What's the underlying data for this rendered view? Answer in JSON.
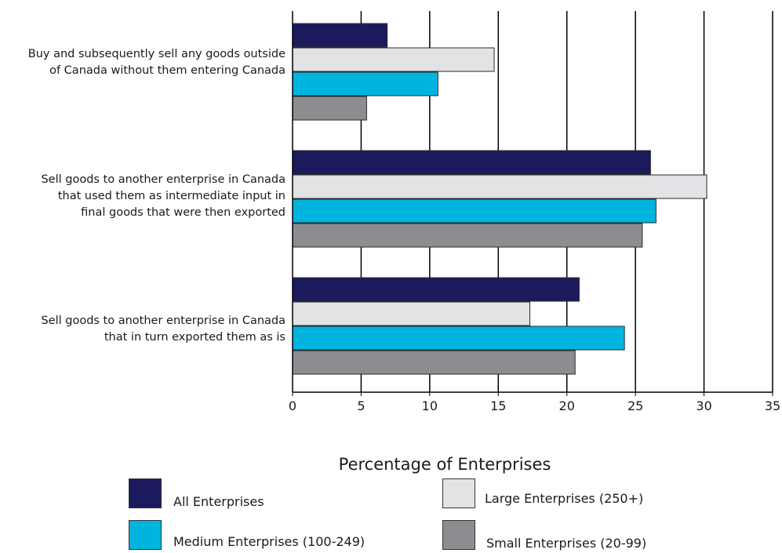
{
  "chart_data": {
    "type": "bar",
    "orientation": "horizontal",
    "title": "",
    "xlabel": "Percentage of Enterprises",
    "ylabel": "",
    "xlim": [
      0,
      35
    ],
    "xticks": [
      0,
      5,
      10,
      15,
      20,
      25,
      30,
      35
    ],
    "grid": "vertical",
    "legend": "bottom",
    "categories": [
      "Buy and subsequently sell any goods outside\nof Canada without them entering Canada",
      "Sell goods to another enterprise in Canada\nthat used them as intermediate input in\nfinal goods that were then exported",
      "Sell goods to another enterprise in Canada\nthat in turn exported them as is"
    ],
    "series": [
      {
        "name": "All Enterprises",
        "color": "#1a1a5c",
        "values": [
          6.9,
          26.1,
          20.9
        ]
      },
      {
        "name": "Large Enterprises (250+)",
        "color": "#e3e3e6",
        "values": [
          14.7,
          30.2,
          17.3
        ]
      },
      {
        "name": "Medium Enterprises (100-249)",
        "color": "#00b4e0",
        "values": [
          10.6,
          26.5,
          24.2
        ]
      },
      {
        "name": "Small Enterprises (20-99)",
        "color": "#8c8d91",
        "values": [
          5.4,
          25.5,
          20.6
        ]
      }
    ]
  }
}
